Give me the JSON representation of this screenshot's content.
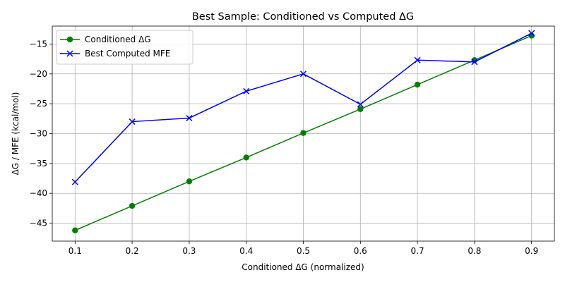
{
  "chart_data": {
    "type": "line",
    "title": "Best Sample: Conditioned vs Computed ΔG",
    "xlabel": "Conditioned ΔG (normalized)",
    "ylabel": "ΔG / MFE (kcal/mol)",
    "x": [
      0.1,
      0.2,
      0.3,
      0.4,
      0.5,
      0.6,
      0.7,
      0.8,
      0.9
    ],
    "xticks": [
      "0.1",
      "0.2",
      "0.3",
      "0.4",
      "0.5",
      "0.6",
      "0.7",
      "0.8",
      "0.9"
    ],
    "yticks": [
      "−45",
      "−40",
      "−35",
      "−30",
      "−25",
      "−20",
      "−15"
    ],
    "xlim": [
      0.06,
      0.94
    ],
    "ylim": [
      -48,
      -12
    ],
    "grid": true,
    "legend_position": "top-left",
    "series": [
      {
        "name": "Conditioned ΔG",
        "color": "#008000",
        "marker": "circle",
        "values": [
          -46.2,
          -42.1,
          -38.0,
          -34.0,
          -29.9,
          -25.9,
          -21.8,
          -17.7,
          -13.6
        ]
      },
      {
        "name": "Best Computed MFE",
        "color": "#0000ff",
        "marker": "x",
        "values": [
          -38.1,
          -28.0,
          -27.4,
          -22.9,
          -20.0,
          -25.1,
          -17.7,
          -18.0,
          -13.2
        ]
      }
    ]
  }
}
